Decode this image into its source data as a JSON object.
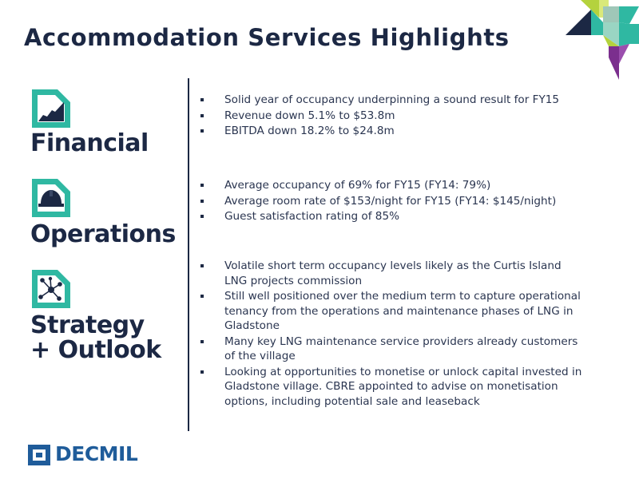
{
  "title": "Accommodation Services Highlights",
  "colors": {
    "navy": "#1c2844",
    "teal": "#2fb8a2",
    "green": "#b4d23d",
    "purple": "#7b2f8e",
    "blue": "#1f5c9a"
  },
  "sections": [
    {
      "label": "Financial",
      "icon": "financial-chart-icon",
      "bullets": [
        "Solid year of occupancy underpinning a sound result for FY15",
        "Revenue down 5.1% to $53.8m",
        "EBITDA down 18.2% to $24.8m"
      ]
    },
    {
      "label": "Operations",
      "icon": "hard-hat-icon",
      "bullets": [
        "Average occupancy of 69% for FY15 (FY14: 79%)",
        "Average room rate of $153/night for FY15 (FY14: $145/night)",
        "Guest satisfaction rating of 85%"
      ]
    },
    {
      "label_line1": "Strategy",
      "label_line2": "+ Outlook",
      "icon": "network-icon",
      "bullets": [
        "Volatile short term occupancy levels likely as the Curtis Island LNG projects commission",
        "Still well positioned over the medium term to capture operational tenancy from the operations and maintenance phases of LNG in Gladstone",
        "Many key LNG maintenance service providers already customers of the village",
        "Looking at opportunities to monetise or unlock capital invested in Gladstone village. CBRE appointed to advise on monetisation options, including potential sale and leaseback"
      ]
    }
  ],
  "logo": {
    "text": "DECMIL",
    "icon": "decmil-logo-icon"
  }
}
